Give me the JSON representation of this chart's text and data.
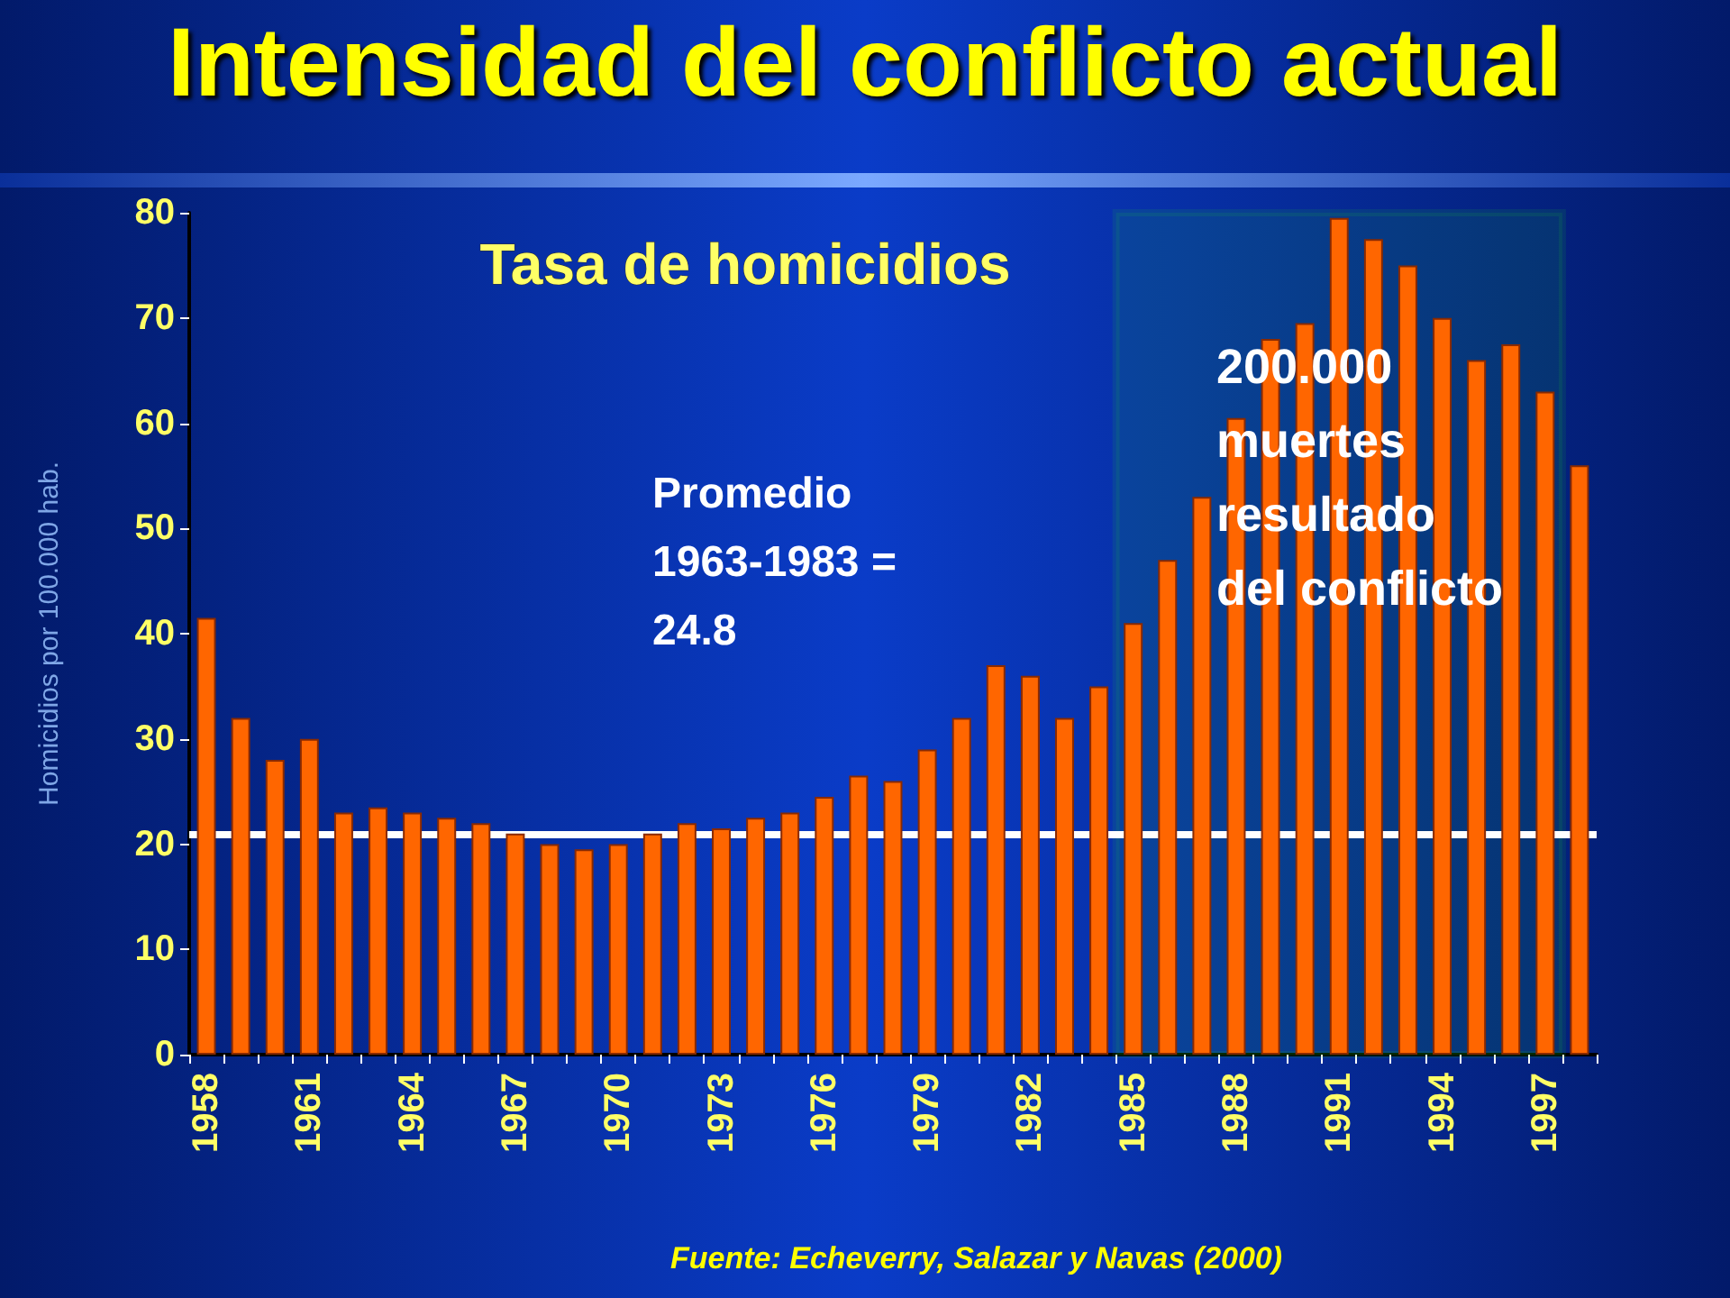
{
  "chart_data": {
    "type": "bar",
    "title": "Intensidad del conflicto actual",
    "subtitle": "Tasa de homicidios",
    "ylabel": "Homicidios por 100.000 hab.",
    "categories": [
      "1958",
      null,
      null,
      "1961",
      null,
      null,
      "1964",
      null,
      null,
      "1967",
      null,
      null,
      "1970",
      null,
      null,
      "1973",
      null,
      null,
      "1976",
      null,
      null,
      "1979",
      null,
      null,
      "1982",
      null,
      null,
      "1985",
      null,
      null,
      "1988",
      null,
      null,
      "1991",
      null,
      null,
      "1994",
      null,
      null,
      "1997",
      null
    ],
    "values": [
      41.5,
      32,
      28,
      30,
      23,
      23.5,
      23,
      22.5,
      22,
      21,
      20,
      19.5,
      20,
      21,
      22,
      21.5,
      22.5,
      23,
      24.5,
      26.5,
      26,
      29,
      32,
      37,
      36,
      32,
      35,
      41,
      47,
      53,
      60.5,
      68,
      69.5,
      79.5,
      77.5,
      75,
      70,
      66,
      67.5,
      63,
      56
    ],
    "color": "#ff6600",
    "ylim": [
      0,
      80
    ],
    "yticks": [
      0,
      10,
      20,
      30,
      40,
      50,
      60,
      70,
      80
    ],
    "grid": false,
    "ref_lines": [
      {
        "axis": "y",
        "value": 21,
        "color": "#ffffff"
      }
    ],
    "bands": [
      {
        "axis": "x",
        "from": "1985",
        "to": "1997",
        "color": "#22dd22"
      }
    ],
    "annotations": [
      "Promedio\n1963-1983 =\n24.8",
      "200.000\nmuertes\nresultado\ndel conflicto",
      "Fuente: Echeverry, Salazar y Navas (2000)"
    ]
  }
}
